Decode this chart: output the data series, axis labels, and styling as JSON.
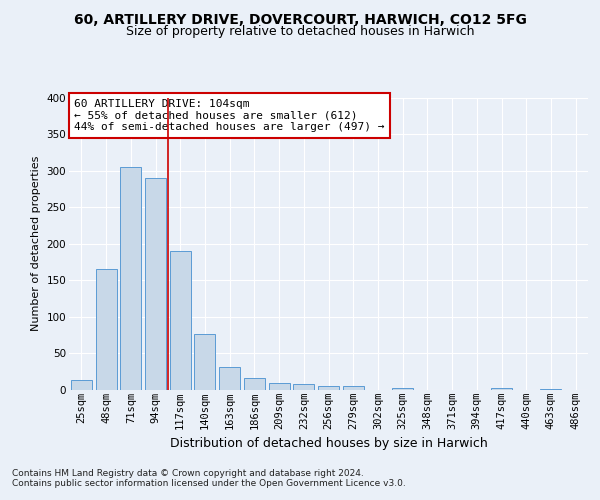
{
  "title1": "60, ARTILLERY DRIVE, DOVERCOURT, HARWICH, CO12 5FG",
  "title2": "Size of property relative to detached houses in Harwich",
  "xlabel": "Distribution of detached houses by size in Harwich",
  "ylabel": "Number of detached properties",
  "footnote1": "Contains HM Land Registry data © Crown copyright and database right 2024.",
  "footnote2": "Contains public sector information licensed under the Open Government Licence v3.0.",
  "categories": [
    "25sqm",
    "48sqm",
    "71sqm",
    "94sqm",
    "117sqm",
    "140sqm",
    "163sqm",
    "186sqm",
    "209sqm",
    "232sqm",
    "256sqm",
    "279sqm",
    "302sqm",
    "325sqm",
    "348sqm",
    "371sqm",
    "394sqm",
    "417sqm",
    "440sqm",
    "463sqm",
    "486sqm"
  ],
  "values": [
    14,
    165,
    305,
    290,
    190,
    76,
    32,
    17,
    9,
    8,
    5,
    5,
    0,
    3,
    0,
    0,
    0,
    3,
    0,
    2,
    0
  ],
  "bar_color": "#c8d8e8",
  "bar_edge_color": "#5b9bd5",
  "vline_x": 3.5,
  "vline_color": "#cc0000",
  "annotation_text": "60 ARTILLERY DRIVE: 104sqm\n← 55% of detached houses are smaller (612)\n44% of semi-detached houses are larger (497) →",
  "annotation_box_color": "white",
  "annotation_box_edge_color": "#cc0000",
  "ylim": [
    0,
    400
  ],
  "yticks": [
    0,
    50,
    100,
    150,
    200,
    250,
    300,
    350,
    400
  ],
  "bg_color": "#eaf0f8",
  "plot_bg_color": "#eaf0f8",
  "grid_color": "white",
  "title1_fontsize": 10,
  "title2_fontsize": 9,
  "xlabel_fontsize": 9,
  "ylabel_fontsize": 8,
  "tick_fontsize": 7.5,
  "annotation_fontsize": 8
}
